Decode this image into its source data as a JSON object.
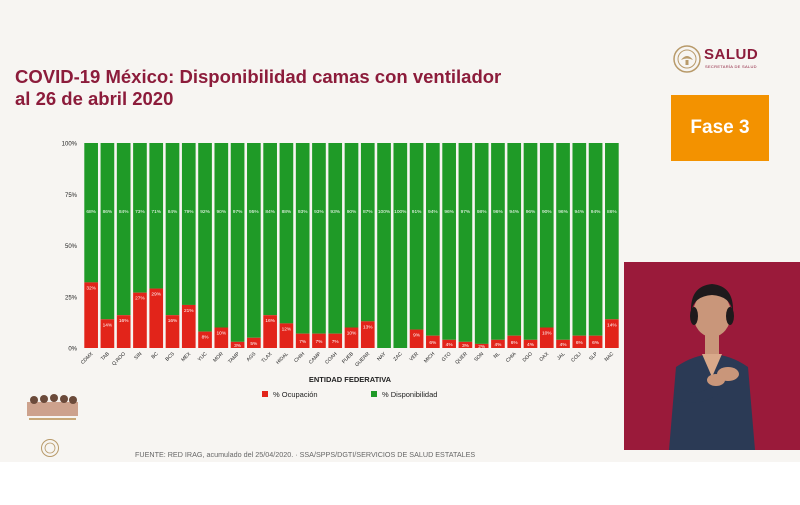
{
  "header": {
    "title_line1": "COVID-19 México: Disponibilidad camas con ventilador",
    "title_line2": "al 26 de abril 2020",
    "logo_text": "SALUD",
    "logo_subtext": "SECRETARÍA DE SALUD",
    "fase_label": "Fase 3"
  },
  "footer": {
    "source": "FUENTE: RED IRAG, acumulado del 25/04/2020.  ·  SSA/SPPS/DGTI/SERVICIOS DE SALUD ESTATALES"
  },
  "colors": {
    "occupancy": "#e2241a",
    "availability": "#1f9a27",
    "title": "#8c1c3b",
    "fase_box": "#f39200",
    "interpreter_bg": "#9a1a3a"
  },
  "chart_data": {
    "type": "bar",
    "stacked": true,
    "percent": true,
    "title": "COVID-19 México: Disponibilidad camas con ventilador al 26 de abril 2020",
    "xlabel": "ENTIDAD FEDERATIVA",
    "ylabel": "",
    "ylim": [
      0,
      100
    ],
    "yticks": [
      "0%",
      "25%",
      "50%",
      "75%",
      "100%"
    ],
    "legend_position": "bottom",
    "categories": [
      "CDMX",
      "TAB",
      "Q.ROO",
      "SIN",
      "BC",
      "BCS",
      "MEX",
      "YUC",
      "MOR",
      "TAMP",
      "AGS",
      "TLAX",
      "HIDAL",
      "CHIH",
      "CAMP",
      "COAH",
      "PUEB",
      "GUERR",
      "NAY",
      "ZAC",
      "VER",
      "MICH",
      "GTO",
      "QUER",
      "SON",
      "NL",
      "CHIA",
      "DGO",
      "OAX",
      "JAL",
      "COLI",
      "SLP",
      "NAC"
    ],
    "series": [
      {
        "name": "% Ocupación",
        "color": "#e2241a",
        "values": [
          32,
          14,
          16,
          27,
          29,
          16,
          21,
          8,
          10,
          3,
          5,
          16,
          12,
          7,
          7,
          7,
          10,
          13,
          0,
          0,
          9,
          6,
          4,
          3,
          2,
          4,
          6,
          4,
          10,
          4,
          6,
          6,
          14
        ],
        "labels": [
          "32%",
          "14%",
          "16%",
          "27%",
          "29%",
          "16%",
          "21%",
          "8%",
          "10%",
          "3%",
          "5%",
          "16%",
          "12%",
          "7%",
          "7%",
          "7%",
          "10%",
          "13%",
          "",
          "",
          "9%",
          "6%",
          "4%",
          "3%",
          "2%",
          "4%",
          "6%",
          "4%",
          "10%",
          "4%",
          "6%",
          "6%",
          "14%"
        ]
      },
      {
        "name": "% Disponibilidad",
        "color": "#1f9a27",
        "values": [
          68,
          86,
          84,
          73,
          71,
          84,
          79,
          92,
          90,
          97,
          95,
          84,
          88,
          93,
          93,
          93,
          90,
          87,
          100,
          100,
          91,
          94,
          96,
          97,
          98,
          96,
          94,
          96,
          90,
          96,
          94,
          94,
          86
        ],
        "labels": [
          "68%",
          "86%",
          "84%",
          "73%",
          "71%",
          "84%",
          "79%",
          "92%",
          "90%",
          "97%",
          "95%",
          "84%",
          "88%",
          "93%",
          "93%",
          "93%",
          "90%",
          "87%",
          "100%",
          "100%",
          "91%",
          "94%",
          "96%",
          "97%",
          "98%",
          "96%",
          "94%",
          "96%",
          "90%",
          "96%",
          "94%",
          "94%",
          "86%"
        ]
      }
    ]
  }
}
